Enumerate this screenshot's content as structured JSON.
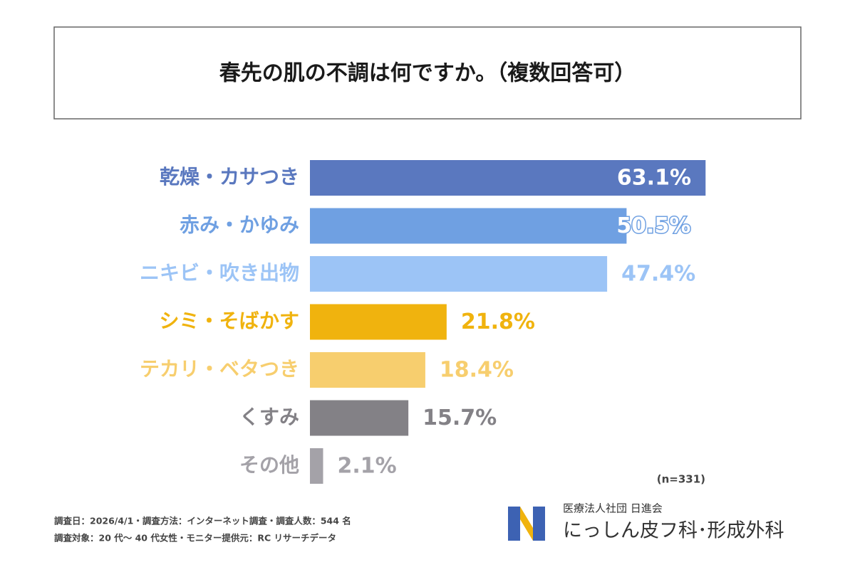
{
  "chart_data": {
    "type": "bar",
    "orientation": "horizontal",
    "title": "春先の肌の不調は何ですか。（複数回答可）",
    "categories": [
      "乾燥・カサつき",
      "赤み・かゆみ",
      "ニキビ・吹き出物",
      "シミ・そばかす",
      "テカリ・ベタつき",
      "くすみ",
      "その他"
    ],
    "values": [
      63.1,
      50.5,
      47.4,
      21.8,
      18.4,
      15.7,
      2.1
    ],
    "value_labels": [
      "63.1%",
      "50.5%",
      "47.4%",
      "21.8%",
      "18.4%",
      "15.7%",
      "2.1%"
    ],
    "colors": [
      "#5a78bf",
      "#6fa0e2",
      "#9cc4f6",
      "#f0b30e",
      "#f7ce6e",
      "#838186",
      "#a4a2a8"
    ],
    "note": "(n=331)"
  },
  "footer": {
    "lines": [
      "調査日：2026/4/1・調査方法：インターネット調査・調査人数：544 名",
      "調査対象：20 代～ 40 代女性・モニター提供元：RC リサーチデータ"
    ]
  },
  "logo": {
    "org": "医療法人社団 日進会",
    "name": "にっしん皮フ科･形成外科"
  }
}
